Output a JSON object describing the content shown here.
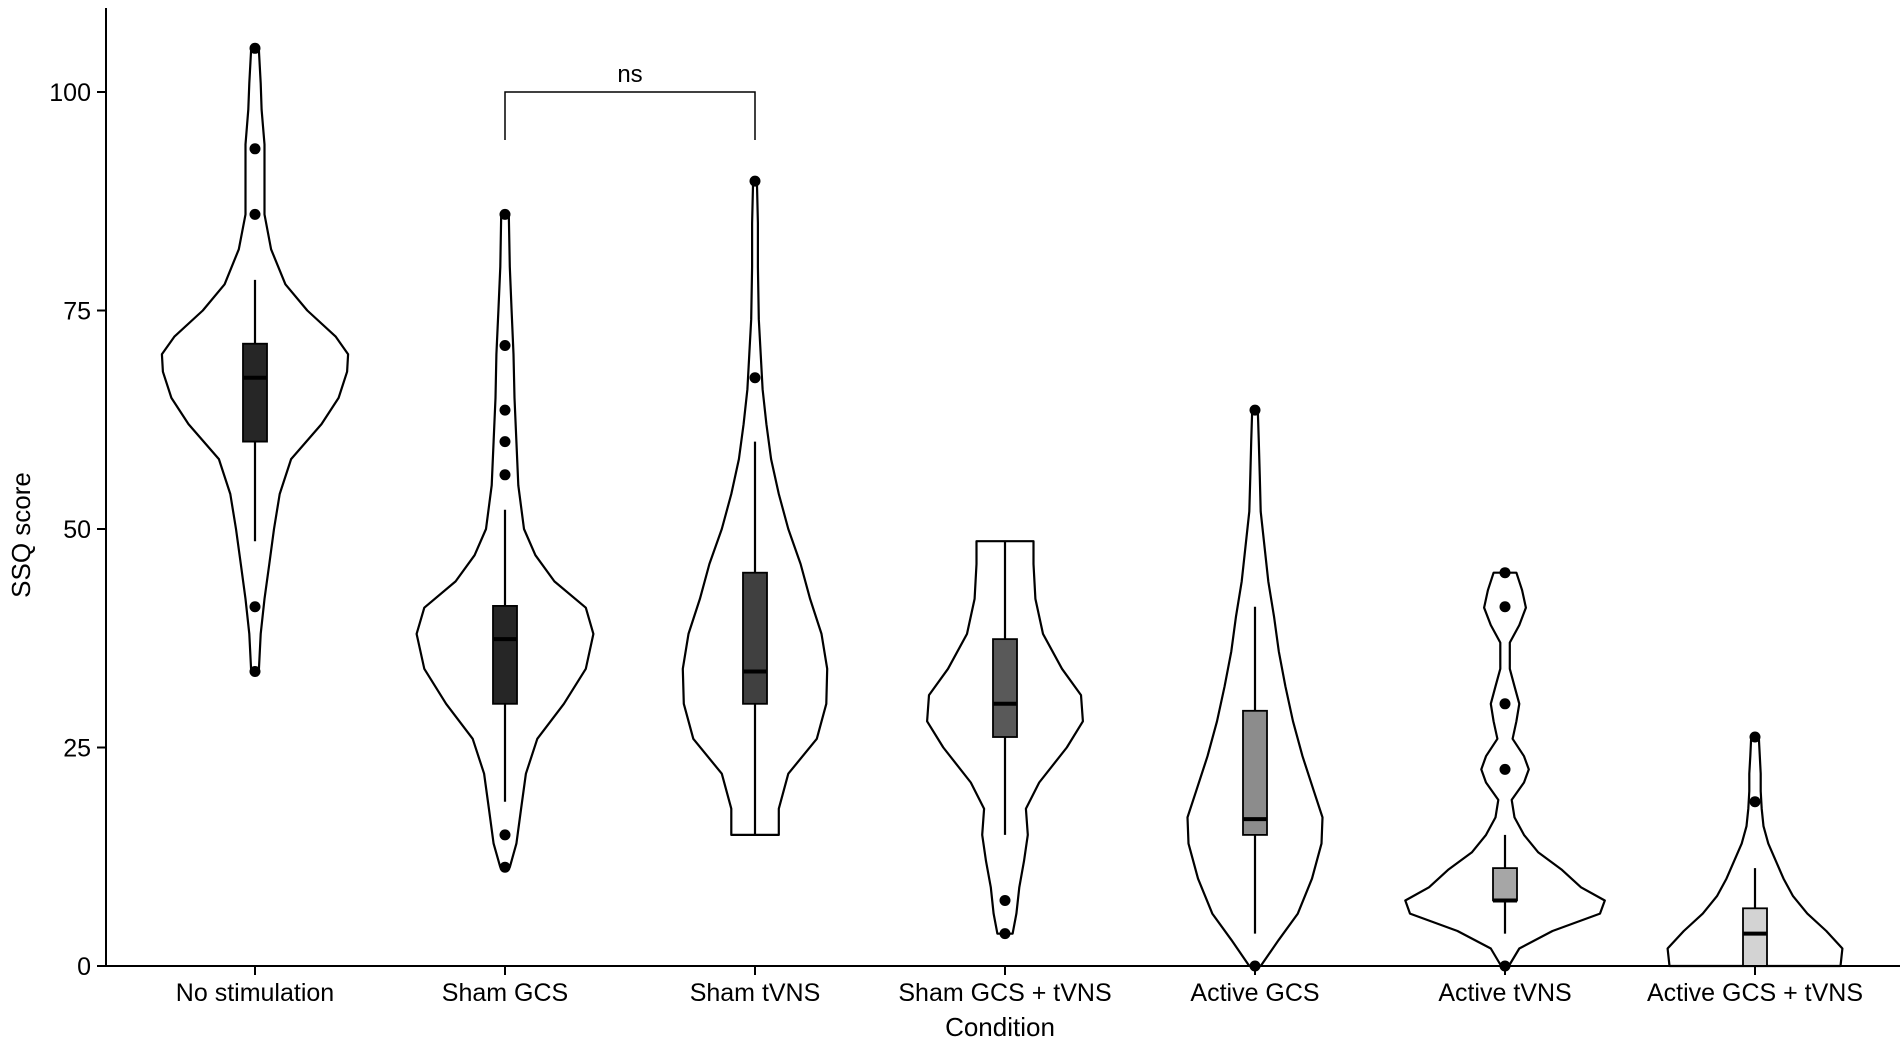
{
  "chart_data": {
    "type": "violin",
    "xlabel": "Condition",
    "ylabel": "SSQ score",
    "ylim": [
      0,
      110
    ],
    "yticks": [
      0,
      25,
      50,
      75,
      100
    ],
    "grid": false,
    "legend": "none",
    "categories": [
      "No stimulation",
      "Sham GCS",
      "Sham tVNS",
      "Sham GCS + tVNS",
      "Active GCS",
      "Active tVNS",
      "Active GCS + tVNS"
    ],
    "groups": [
      {
        "name": "No stimulation",
        "fill": "#262626",
        "box": {
          "q1": 60,
          "median": 67.3,
          "q3": 71.2,
          "whisker_low": 48.6,
          "whisker_high": 78.5
        },
        "outliers": [
          105,
          93.5,
          86,
          41.1,
          33.7
        ],
        "density": [
          [
            33.7,
            0.04
          ],
          [
            38,
            0.06
          ],
          [
            42,
            0.1
          ],
          [
            46,
            0.15
          ],
          [
            50,
            0.2
          ],
          [
            54,
            0.26
          ],
          [
            58,
            0.38
          ],
          [
            62,
            0.7
          ],
          [
            65,
            0.88
          ],
          [
            68,
            0.97
          ],
          [
            70,
            0.98
          ],
          [
            72,
            0.85
          ],
          [
            75,
            0.55
          ],
          [
            78,
            0.32
          ],
          [
            82,
            0.17
          ],
          [
            86,
            0.1
          ],
          [
            90,
            0.1
          ],
          [
            94,
            0.1
          ],
          [
            98,
            0.07
          ],
          [
            101,
            0.06
          ],
          [
            105,
            0.04
          ]
        ]
      },
      {
        "name": "Sham GCS",
        "fill": "#262626",
        "box": {
          "q1": 30,
          "median": 37.4,
          "q3": 41.2,
          "whisker_low": 18.8,
          "whisker_high": 52.2
        },
        "outliers": [
          86,
          71,
          63.6,
          60,
          56.2,
          15,
          11.3
        ],
        "density": [
          [
            11.3,
            0.05
          ],
          [
            14,
            0.12
          ],
          [
            18,
            0.17
          ],
          [
            22,
            0.22
          ],
          [
            26,
            0.34
          ],
          [
            30,
            0.62
          ],
          [
            34,
            0.85
          ],
          [
            38,
            0.93
          ],
          [
            41,
            0.85
          ],
          [
            44,
            0.52
          ],
          [
            47,
            0.32
          ],
          [
            50,
            0.2
          ],
          [
            55,
            0.14
          ],
          [
            60,
            0.12
          ],
          [
            65,
            0.1
          ],
          [
            70,
            0.09
          ],
          [
            75,
            0.07
          ],
          [
            80,
            0.05
          ],
          [
            86,
            0.04
          ]
        ]
      },
      {
        "name": "Sham tVNS",
        "fill": "#404040",
        "box": {
          "q1": 30,
          "median": 33.7,
          "q3": 45,
          "whisker_low": 15,
          "whisker_high": 60
        },
        "outliers": [
          89.8,
          67.3
        ],
        "density": [
          [
            15,
            0.25
          ],
          [
            18,
            0.25
          ],
          [
            22,
            0.35
          ],
          [
            26,
            0.65
          ],
          [
            30,
            0.75
          ],
          [
            34,
            0.76
          ],
          [
            38,
            0.7
          ],
          [
            42,
            0.58
          ],
          [
            46,
            0.48
          ],
          [
            50,
            0.35
          ],
          [
            54,
            0.25
          ],
          [
            58,
            0.17
          ],
          [
            62,
            0.12
          ],
          [
            66,
            0.08
          ],
          [
            70,
            0.06
          ],
          [
            74,
            0.04
          ],
          [
            80,
            0.03
          ],
          [
            85,
            0.03
          ],
          [
            89.8,
            0.02
          ]
        ]
      },
      {
        "name": "Sham GCS + tVNS",
        "fill": "#595959",
        "box": {
          "q1": 26.2,
          "median": 30,
          "q3": 37.4,
          "whisker_low": 15,
          "whisker_high": 48.6
        },
        "outliers": [
          7.5,
          3.7
        ],
        "density": [
          [
            3.7,
            0.08
          ],
          [
            6,
            0.12
          ],
          [
            9,
            0.15
          ],
          [
            12,
            0.2
          ],
          [
            15,
            0.24
          ],
          [
            18,
            0.22
          ],
          [
            21,
            0.36
          ],
          [
            25,
            0.65
          ],
          [
            28,
            0.82
          ],
          [
            31,
            0.8
          ],
          [
            34,
            0.6
          ],
          [
            38,
            0.4
          ],
          [
            42,
            0.32
          ],
          [
            46,
            0.3
          ],
          [
            48.6,
            0.3
          ]
        ]
      },
      {
        "name": "Active GCS",
        "fill": "#8c8c8c",
        "box": {
          "q1": 15,
          "median": 16.8,
          "q3": 29.2,
          "whisker_low": 3.7,
          "whisker_high": 41.1
        },
        "outliers": [
          63.6,
          0
        ],
        "density": [
          [
            0,
            0.06
          ],
          [
            3,
            0.25
          ],
          [
            6,
            0.45
          ],
          [
            10,
            0.6
          ],
          [
            14,
            0.7
          ],
          [
            17,
            0.71
          ],
          [
            20,
            0.62
          ],
          [
            24,
            0.5
          ],
          [
            28,
            0.4
          ],
          [
            32,
            0.32
          ],
          [
            36,
            0.25
          ],
          [
            40,
            0.2
          ],
          [
            44,
            0.14
          ],
          [
            48,
            0.1
          ],
          [
            52,
            0.06
          ],
          [
            56,
            0.05
          ],
          [
            60,
            0.04
          ],
          [
            63.6,
            0.03
          ]
        ]
      },
      {
        "name": "Active tVNS",
        "fill": "#a6a6a6",
        "box": {
          "q1": 7.5,
          "median": 7.5,
          "q3": 11.2,
          "whisker_low": 3.7,
          "whisker_high": 15
        },
        "outliers": [
          45,
          41.1,
          30,
          22.5,
          0
        ],
        "density": [
          [
            0,
            0.04
          ],
          [
            2,
            0.15
          ],
          [
            4,
            0.5
          ],
          [
            6,
            1.0
          ],
          [
            7.5,
            1.05
          ],
          [
            9,
            0.8
          ],
          [
            11,
            0.6
          ],
          [
            13,
            0.35
          ],
          [
            15,
            0.2
          ],
          [
            17,
            0.1
          ],
          [
            19,
            0.07
          ],
          [
            21,
            0.2
          ],
          [
            22.5,
            0.25
          ],
          [
            24,
            0.2
          ],
          [
            26,
            0.08
          ],
          [
            28,
            0.12
          ],
          [
            30,
            0.15
          ],
          [
            32,
            0.1
          ],
          [
            34,
            0.05
          ],
          [
            37,
            0.05
          ],
          [
            39,
            0.15
          ],
          [
            41,
            0.22
          ],
          [
            43,
            0.18
          ],
          [
            45,
            0.12
          ]
        ]
      },
      {
        "name": "Active GCS + tVNS",
        "fill": "#d3d3d3",
        "box": {
          "q1": 0,
          "median": 3.7,
          "q3": 6.6,
          "whisker_low": 0,
          "whisker_high": 11.2
        },
        "outliers": [
          26.2,
          18.8
        ],
        "density": [
          [
            0,
            0.9
          ],
          [
            2,
            0.92
          ],
          [
            4,
            0.75
          ],
          [
            6,
            0.55
          ],
          [
            8,
            0.4
          ],
          [
            10,
            0.3
          ],
          [
            12,
            0.22
          ],
          [
            14,
            0.14
          ],
          [
            16,
            0.09
          ],
          [
            18,
            0.07
          ],
          [
            20,
            0.06
          ],
          [
            22,
            0.06
          ],
          [
            24,
            0.05
          ],
          [
            26.2,
            0.04
          ]
        ]
      }
    ],
    "annotations": [
      {
        "from": "Sham GCS",
        "to": "Sham tVNS",
        "label": "ns",
        "y": 100
      }
    ]
  }
}
